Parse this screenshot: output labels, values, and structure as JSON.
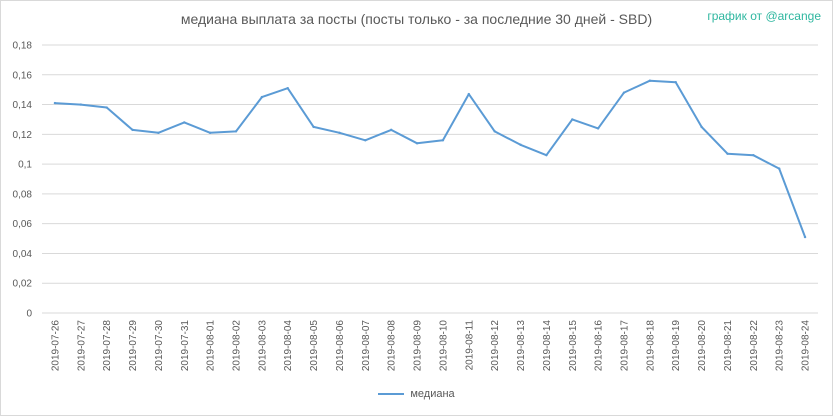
{
  "chart_data": {
    "type": "line",
    "title": "медиана выплата за посты  (посты только - за последние 30 дней - SBD)",
    "credit": "график от @arcange",
    "xlabel": "",
    "ylabel": "",
    "ylim": [
      0,
      0.18
    ],
    "yticks": [
      "0",
      "0,02",
      "0,04",
      "0,06",
      "0,08",
      "0,1",
      "0,12",
      "0,14",
      "0,16",
      "0,18"
    ],
    "grid": true,
    "legend_position": "bottom",
    "color": "#5b9bd5",
    "categories": [
      "2019-07-26",
      "2019-07-27",
      "2019-07-28",
      "2019-07-29",
      "2019-07-30",
      "2019-07-31",
      "2019-08-01",
      "2019-08-02",
      "2019-08-03",
      "2019-08-04",
      "2019-08-05",
      "2019-08-06",
      "2019-08-07",
      "2019-08-08",
      "2019-08-09",
      "2019-08-10",
      "2019-08-11",
      "2019-08-12",
      "2019-08-13",
      "2019-08-14",
      "2019-08-15",
      "2019-08-16",
      "2019-08-17",
      "2019-08-18",
      "2019-08-19",
      "2019-08-20",
      "2019-08-21",
      "2019-08-22",
      "2019-08-23",
      "2019-08-24"
    ],
    "series": [
      {
        "name": "медиана",
        "values": [
          0.141,
          0.14,
          0.138,
          0.123,
          0.121,
          0.128,
          0.121,
          0.122,
          0.145,
          0.151,
          0.125,
          0.121,
          0.116,
          0.123,
          0.114,
          0.116,
          0.147,
          0.122,
          0.113,
          0.106,
          0.13,
          0.124,
          0.148,
          0.156,
          0.155,
          0.125,
          0.107,
          0.106,
          0.097,
          0.051
        ]
      }
    ]
  }
}
